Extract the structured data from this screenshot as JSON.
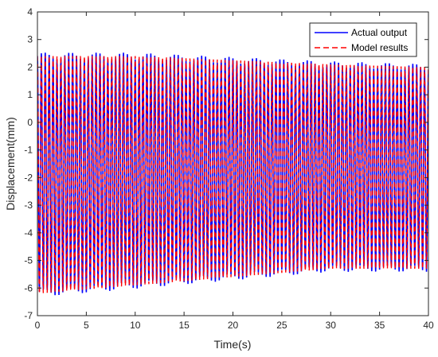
{
  "chart_data": {
    "type": "line",
    "title": "",
    "xlabel": "Time(s)",
    "ylabel": "Displacement(mm)",
    "xlim": [
      0,
      40
    ],
    "ylim": [
      -7,
      4
    ],
    "xticks": [
      0,
      5,
      10,
      15,
      20,
      25,
      30,
      35,
      40
    ],
    "yticks": [
      -7,
      -6,
      -5,
      -4,
      -3,
      -2,
      -1,
      0,
      1,
      2,
      3,
      4
    ],
    "grid": false,
    "legend_position": "top-right",
    "signal": {
      "frequency_hz": 2.5,
      "upper_envelope": {
        "t": [
          0,
          10,
          20,
          30,
          40
        ],
        "value": [
          2.4,
          2.4,
          2.25,
          2.1,
          2.0
        ]
      },
      "lower_envelope": {
        "t": [
          0,
          10,
          20,
          30,
          40
        ],
        "value": [
          -6.2,
          -5.9,
          -5.6,
          -5.3,
          -5.3
        ]
      }
    },
    "series": [
      {
        "name": "Actual output",
        "color": "#0000ff",
        "style": "solid"
      },
      {
        "name": "Model results",
        "color": "#ff0000",
        "style": "dashed"
      }
    ]
  }
}
